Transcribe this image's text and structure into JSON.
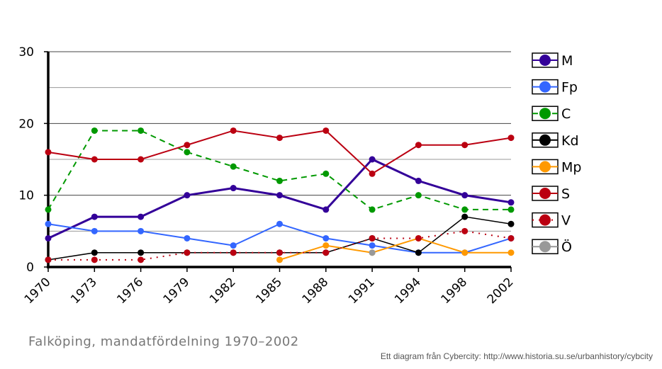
{
  "chart_data": {
    "type": "line",
    "title": "Falköping, mandatfördelning 1970–2002",
    "credit": "Ett diagram från Cybercity: http://www.historia.su.se/urbanhistory/cybcity",
    "xlabel": "",
    "ylabel": "",
    "ylim": [
      0,
      30
    ],
    "yticks": [
      0,
      10,
      20,
      30
    ],
    "grid": true,
    "legend_position": "right",
    "categories": [
      "1970",
      "1973",
      "1976",
      "1979",
      "1982",
      "1985",
      "1988",
      "1991",
      "1994",
      "1998",
      "2002"
    ],
    "series": [
      {
        "name": "M",
        "color": "#330099",
        "style": "solid",
        "width": 3,
        "values": [
          4,
          7,
          7,
          10,
          11,
          10,
          8,
          15,
          12,
          10,
          9
        ]
      },
      {
        "name": "Fp",
        "color": "#3366ff",
        "style": "solid",
        "width": 2,
        "values": [
          6,
          5,
          5,
          4,
          3,
          6,
          4,
          3,
          2,
          2,
          4
        ]
      },
      {
        "name": "C",
        "color": "#009900",
        "style": "dashed",
        "width": 2,
        "values": [
          8,
          19,
          19,
          16,
          14,
          12,
          13,
          8,
          10,
          8,
          8
        ]
      },
      {
        "name": "Kd",
        "color": "#000000",
        "style": "solid",
        "width": 1.5,
        "values": [
          1,
          2,
          2,
          2,
          2,
          2,
          2,
          4,
          2,
          7,
          6
        ]
      },
      {
        "name": "Mp",
        "color": "#ff9900",
        "style": "solid",
        "width": 2,
        "values": [
          null,
          null,
          null,
          null,
          null,
          1,
          3,
          2,
          4,
          2,
          2
        ]
      },
      {
        "name": "S",
        "color": "#bb0011",
        "style": "solid",
        "width": 2,
        "values": [
          16,
          15,
          15,
          17,
          19,
          18,
          19,
          13,
          17,
          17,
          18
        ]
      },
      {
        "name": "V",
        "color": "#bb0011",
        "style": "dotted",
        "width": 2,
        "values": [
          1,
          1,
          1,
          2,
          2,
          2,
          2,
          4,
          4,
          5,
          4
        ]
      },
      {
        "name": "Ö",
        "color": "#999999",
        "style": "solid",
        "width": 2,
        "values": [
          null,
          null,
          null,
          null,
          null,
          null,
          null,
          2,
          null,
          null,
          null
        ]
      }
    ]
  }
}
